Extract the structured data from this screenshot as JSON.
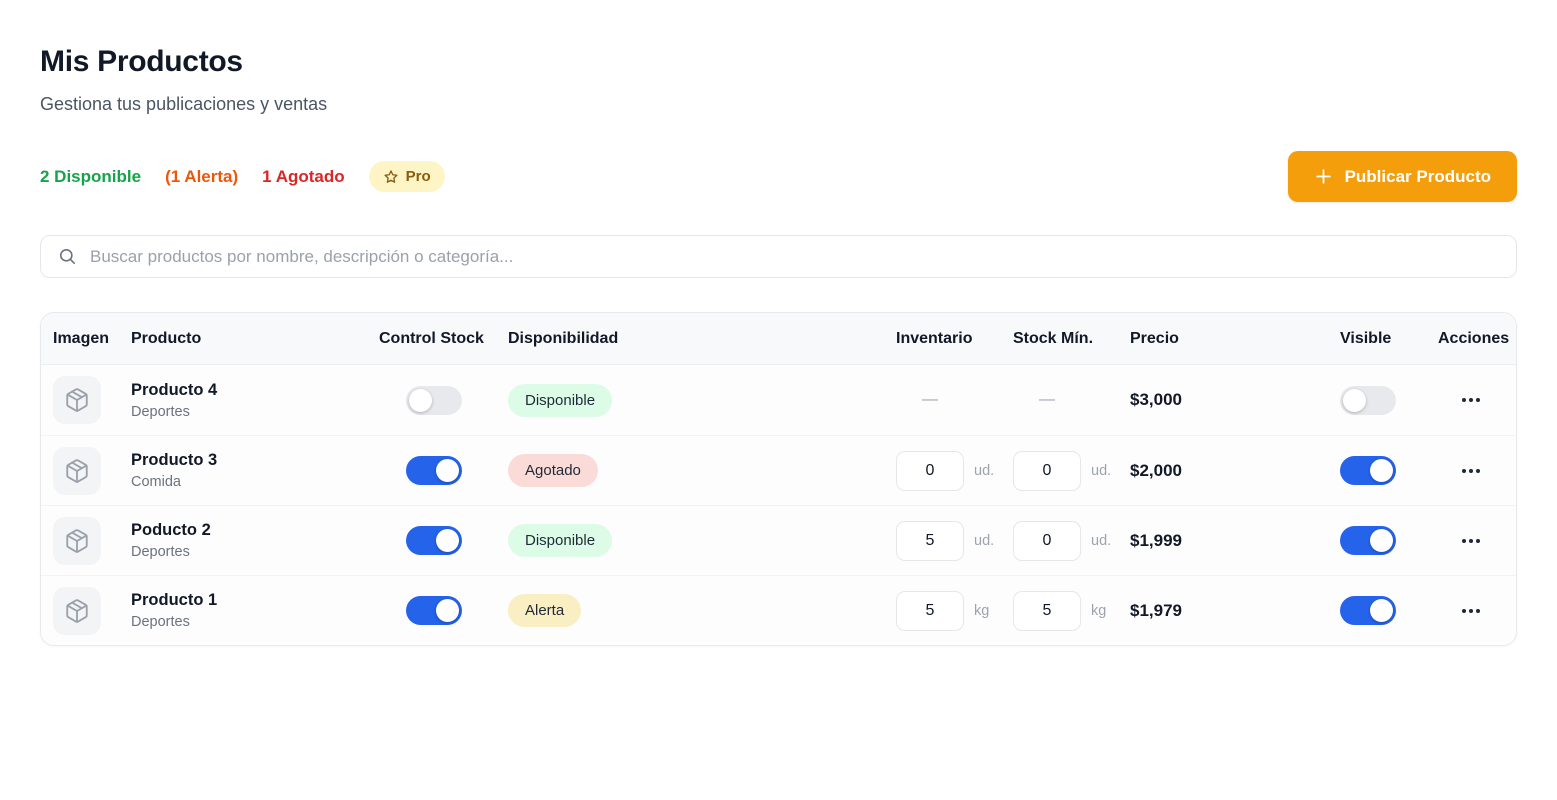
{
  "page": {
    "title": "Mis Productos",
    "subtitle": "Gestiona tus publicaciones y ventas"
  },
  "stats": {
    "available_label": "2 Disponible",
    "alert_label": "(1 Alerta)",
    "soldout_label": "1 Agotado",
    "pro_label": "Pro"
  },
  "toolbar": {
    "publish_label": "Publicar Producto"
  },
  "search": {
    "placeholder": "Buscar productos por nombre, descripción o categoría..."
  },
  "table": {
    "headers": [
      "Imagen",
      "Producto",
      "Control Stock",
      "Disponibilidad",
      "Inventario",
      "Stock Mín.",
      "Precio",
      "Visible",
      "Acciones"
    ],
    "empty_value": "—",
    "rows": [
      {
        "name": "Producto 4",
        "category": "Deportes",
        "control_stock_on": false,
        "status": "Disponible",
        "status_type": "available",
        "inventory": null,
        "min_stock": null,
        "unit": null,
        "price": "$3,000",
        "visible_on": false
      },
      {
        "name": "Producto 3",
        "category": "Comida",
        "control_stock_on": true,
        "status": "Agotado",
        "status_type": "soldout",
        "inventory": "0",
        "min_stock": "0",
        "unit": "ud.",
        "price": "$2,000",
        "visible_on": true
      },
      {
        "name": "Poducto 2",
        "category": "Deportes",
        "control_stock_on": true,
        "status": "Disponible",
        "status_type": "available",
        "inventory": "5",
        "min_stock": "0",
        "unit": "ud.",
        "price": "$1,999",
        "visible_on": true
      },
      {
        "name": "Producto 1",
        "category": "Deportes",
        "control_stock_on": true,
        "status": "Alerta",
        "status_type": "alert",
        "inventory": "5",
        "min_stock": "5",
        "unit": "kg",
        "price": "$1,979",
        "visible_on": true
      }
    ]
  },
  "icons": {
    "search": "magnifier-icon",
    "pro": "star-icon",
    "publish": "plus-icon",
    "product_image": "package-icon",
    "row_actions": "ellipsis-icon"
  },
  "colors": {
    "accent_orange": "#f59e0b",
    "toggle_blue": "#2563eb",
    "stat_green": "#16a34a",
    "stat_orange": "#ea580c",
    "stat_red": "#dc2626",
    "badge_green_bg": "#dcfce7",
    "badge_red_bg": "#fbdbd8",
    "badge_yellow_bg": "#faeec3",
    "pro_bg": "#fdf5c6",
    "pro_text": "#8a5a0e"
  }
}
